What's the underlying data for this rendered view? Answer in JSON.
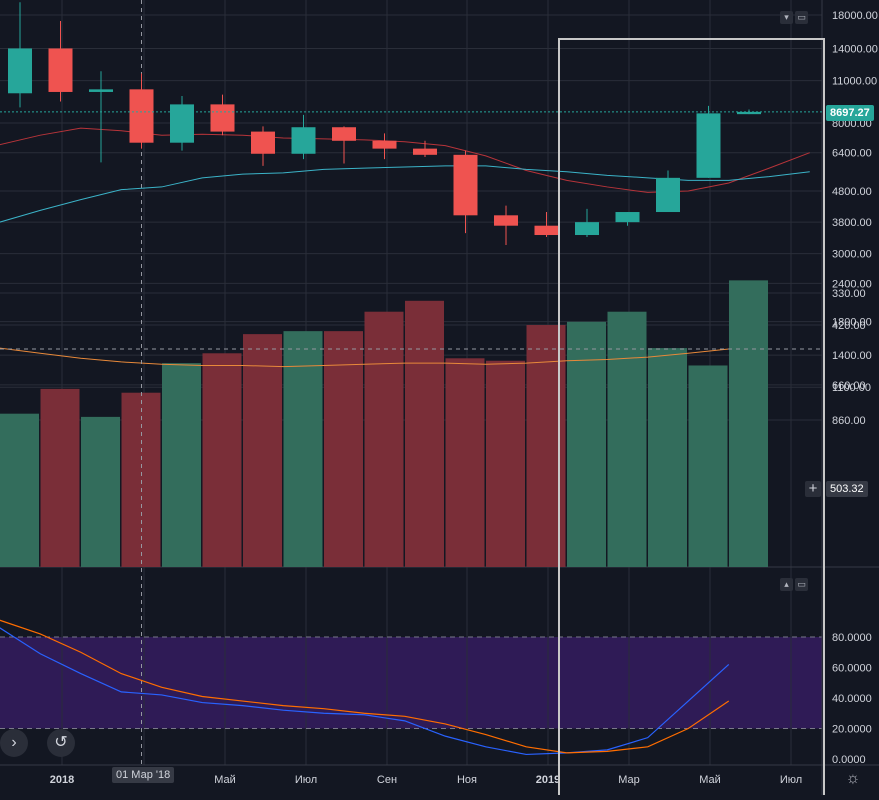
{
  "colors": {
    "background": "#131722",
    "grid": "#2a2e39",
    "up": "#26a69a",
    "down": "#ef5350",
    "up_volume": "#336d5c",
    "down_volume": "#7a2e38",
    "ma_fast": "#b7343a",
    "ma_slow": "#3bb3c8",
    "volume_ma": "#e8893a",
    "stoch_k": "#2962ff",
    "stoch_d": "#ff6d00",
    "stoch_band": "#2f1b56",
    "last_price_line": "#26a69a",
    "selection_box": "#c8c8c8"
  },
  "price_axis": {
    "ticks": [
      "18000.00",
      "14000.00",
      "11000.00",
      "8000.00",
      "6400.00",
      "4800.00",
      "3800.00",
      "3000.00",
      "2400.00",
      "1800.00",
      "1400.00",
      "1100.00"
    ],
    "last_price": "8697.27"
  },
  "volume_axis": {
    "ticks": [
      "860.00",
      "660.00",
      "420.00",
      "330.00"
    ],
    "crosshair_value": "503.32"
  },
  "stoch_axis": {
    "ticks": [
      "80.0000",
      "60.0000",
      "40.0000",
      "20.0000",
      "0.0000"
    ]
  },
  "time_axis": {
    "labels": [
      "2018",
      "Май",
      "Июл",
      "Сен",
      "Ноя",
      "2019",
      "Мар",
      "Май",
      "Июл"
    ],
    "crosshair_label": "01 Мар '18"
  },
  "icons": {
    "pane_collapse": "chevron-down-icon",
    "pane_maximize": "window-icon",
    "pane_restore": "chevron-up-icon",
    "scroll_right": "chevron-right-icon",
    "reset": "reset-icon",
    "settings": "gear-icon",
    "add": "plus-icon"
  },
  "chart_data": {
    "type": "candlestick",
    "scale": "log",
    "timeframe_inferred": "monthly",
    "candles": [
      {
        "t": "2017-12",
        "o": 10000,
        "h": 19800,
        "l": 9000,
        "c": 14000
      },
      {
        "t": "2018-01",
        "o": 14000,
        "h": 17200,
        "l": 9400,
        "c": 10100
      },
      {
        "t": "2018-02",
        "o": 10100,
        "h": 11800,
        "l": 5950,
        "c": 10300
      },
      {
        "t": "2018-03",
        "o": 10300,
        "h": 11600,
        "l": 6600,
        "c": 6900
      },
      {
        "t": "2018-04",
        "o": 6900,
        "h": 9800,
        "l": 6500,
        "c": 9200
      },
      {
        "t": "2018-05",
        "o": 9200,
        "h": 9900,
        "l": 7300,
        "c": 7500
      },
      {
        "t": "2018-06",
        "o": 7500,
        "h": 7800,
        "l": 5800,
        "c": 6350
      },
      {
        "t": "2018-07",
        "o": 6350,
        "h": 8500,
        "l": 6100,
        "c": 7750
      },
      {
        "t": "2018-08",
        "o": 7750,
        "h": 7800,
        "l": 5900,
        "c": 7000
      },
      {
        "t": "2018-09",
        "o": 7000,
        "h": 7400,
        "l": 6100,
        "c": 6600
      },
      {
        "t": "2018-10",
        "o": 6600,
        "h": 7000,
        "l": 6200,
        "c": 6300
      },
      {
        "t": "2018-11",
        "o": 6300,
        "h": 6500,
        "l": 3500,
        "c": 4000
      },
      {
        "t": "2018-12",
        "o": 4000,
        "h": 4300,
        "l": 3200,
        "c": 3700
      },
      {
        "t": "2019-01",
        "o": 3700,
        "h": 4100,
        "l": 3400,
        "c": 3450
      },
      {
        "t": "2019-02",
        "o": 3450,
        "h": 4200,
        "l": 3400,
        "c": 3800
      },
      {
        "t": "2019-03",
        "o": 3800,
        "h": 4100,
        "l": 3700,
        "c": 4100
      },
      {
        "t": "2019-04",
        "o": 4100,
        "h": 5600,
        "l": 4100,
        "c": 5300
      },
      {
        "t": "2019-05",
        "o": 5300,
        "h": 9100,
        "l": 5300,
        "c": 8600
      },
      {
        "t": "2019-06",
        "o": 8550,
        "h": 8850,
        "l": 8550,
        "c": 8697.27
      }
    ],
    "ma_fast": [
      5900,
      6800,
      7300,
      7700,
      7550,
      7300,
      7350,
      7300,
      7150,
      7100,
      7050,
      6950,
      6750,
      6250,
      5600,
      5200,
      4950,
      4750,
      4800,
      5100,
      5700,
      6400
    ],
    "ma_slow": [
      3250,
      3800,
      4150,
      4500,
      4850,
      4950,
      5300,
      5450,
      5500,
      5650,
      5700,
      5750,
      5800,
      5800,
      5650,
      5550,
      5400,
      5300,
      5200,
      5200,
      5350,
      5550
    ],
    "volume": {
      "values": [
        820,
        680,
        840,
        700,
        560,
        520,
        450,
        440,
        440,
        380,
        350,
        540,
        550,
        420,
        410,
        380,
        500,
        570,
        300
      ],
      "up": [
        true,
        false,
        true,
        false,
        true,
        false,
        false,
        true,
        false,
        false,
        false,
        false,
        false,
        false,
        true,
        true,
        true,
        true,
        true
      ],
      "ma": [
        500,
        520,
        540,
        555,
        565,
        570,
        570,
        575,
        570,
        565,
        560,
        560,
        565,
        560,
        550,
        545,
        535,
        520,
        503.32
      ]
    },
    "stochastic": {
      "k": [
        90,
        86,
        69,
        56,
        44,
        42,
        37,
        35,
        32,
        30,
        29,
        25,
        15,
        8,
        3,
        4,
        6,
        14,
        38,
        62
      ],
      "d": [
        94,
        91,
        82,
        70,
        56,
        47,
        41,
        38,
        35,
        33,
        30,
        28,
        23,
        16,
        8,
        4,
        5,
        8,
        20,
        38
      ],
      "upper_band": 80,
      "lower_band": 20,
      "range": [
        0,
        100
      ]
    }
  }
}
